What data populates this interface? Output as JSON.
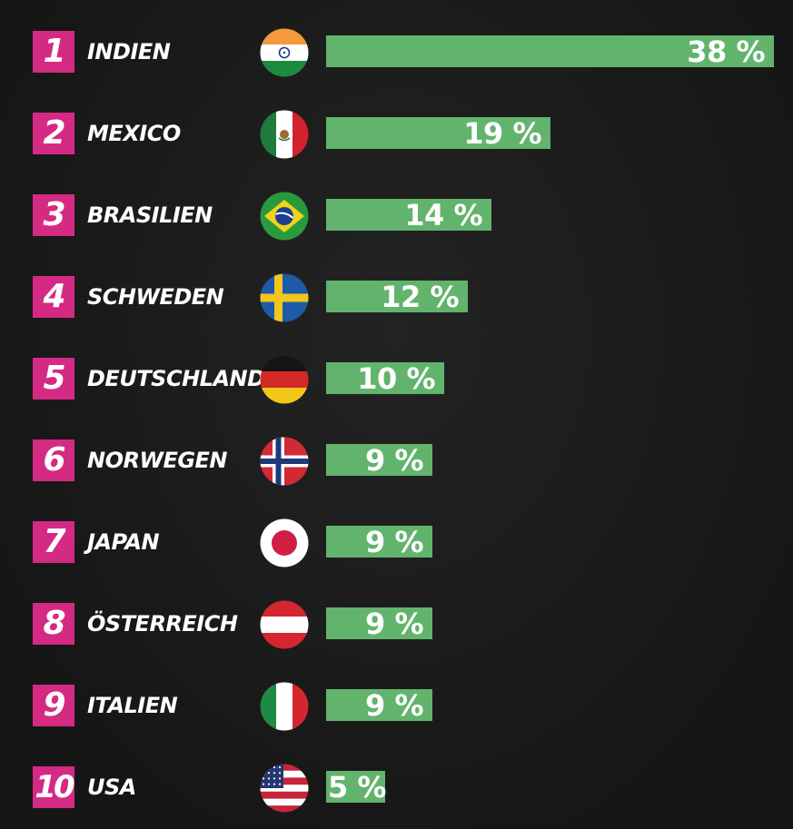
{
  "chart_data": {
    "type": "bar",
    "orientation": "horizontal",
    "categories": [
      "INDIEN",
      "MEXICO",
      "BRASILIEN",
      "SCHWEDEN",
      "DEUTSCHLAND",
      "NORWEGEN",
      "JAPAN",
      "ÖSTERREICH",
      "ITALIEN",
      "USA"
    ],
    "values": [
      38,
      19,
      14,
      12,
      10,
      9,
      9,
      9,
      9,
      5
    ],
    "value_labels": [
      "38 %",
      "19 %",
      "14 %",
      "12 %",
      "10 %",
      "9 %",
      "9 %",
      "9 %",
      "9 %",
      "5 %"
    ],
    "ranks": [
      "1",
      "2",
      "3",
      "4",
      "5",
      "6",
      "7",
      "8",
      "9",
      "10"
    ],
    "flags": [
      "india-flag-icon",
      "mexico-flag-icon",
      "brazil-flag-icon",
      "sweden-flag-icon",
      "germany-flag-icon",
      "norway-flag-icon",
      "japan-flag-icon",
      "austria-flag-icon",
      "italy-flag-icon",
      "usa-flag-icon"
    ],
    "title": "",
    "xlabel": "",
    "ylabel": "",
    "xlim": [
      0,
      38
    ],
    "grid": false,
    "legend": "none",
    "colors": {
      "bar": "#62b46d",
      "rank_badge": "#d42a84",
      "background": "#1a1a1a",
      "text": "#ffffff"
    }
  }
}
